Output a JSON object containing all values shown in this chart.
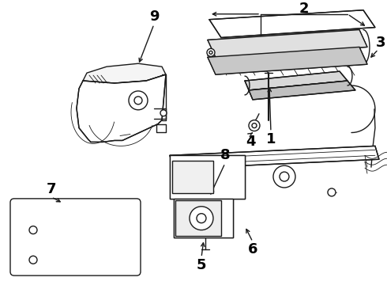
{
  "background": "#ffffff",
  "line_color": "#1a1a1a",
  "label_color": "#000000",
  "figsize": [
    4.9,
    3.6
  ],
  "dpi": 100,
  "lw": 1.0,
  "lt": 0.6,
  "fs": 11
}
